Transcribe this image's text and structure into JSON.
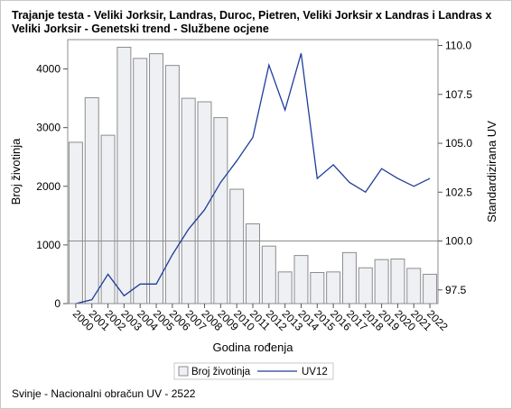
{
  "chart_data": {
    "type": "bar+line",
    "title": "Trajanje testa - Veliki Jorksir, Landras, Duroc, Pietren, Veliki Jorksir x Landras i Landras x Veliki Jorksir - Genetski trend - Službene ocjene",
    "xlabel": "Godina rođenja",
    "ylabel_left": "Broj životinja",
    "ylabel_right": "Standardizirana UV",
    "categories": [
      "2000",
      "2001",
      "2002",
      "2003",
      "2004",
      "2005",
      "2006",
      "2007",
      "2008",
      "2009",
      "2010",
      "2011",
      "2012",
      "2013",
      "2014",
      "2015",
      "2016",
      "2017",
      "2018",
      "2019",
      "2020",
      "2021",
      "2022"
    ],
    "series": [
      {
        "name": "Broj životinja",
        "type": "bar",
        "axis": "left",
        "color": "#eef0f4",
        "stroke": "#8c8c8c",
        "values": [
          2750,
          3510,
          2870,
          4370,
          4180,
          4260,
          4060,
          3500,
          3440,
          3170,
          1950,
          1360,
          980,
          540,
          820,
          530,
          540,
          870,
          610,
          750,
          760,
          600,
          500
        ]
      },
      {
        "name": "UV12",
        "type": "line",
        "axis": "right",
        "color": "#1f3d99",
        "values": [
          96.8,
          97.0,
          98.3,
          97.2,
          97.8,
          97.8,
          99.3,
          100.6,
          101.6,
          103.0,
          104.1,
          105.3,
          109.0,
          106.7,
          109.6,
          103.2,
          103.9,
          103.0,
          102.5,
          103.7,
          103.2,
          102.8,
          103.2
        ]
      }
    ],
    "ylim_left": [
      0,
      4500
    ],
    "yticks_left": [
      "0",
      "1000",
      "2000",
      "3000",
      "4000"
    ],
    "ylim_right": [
      96.8,
      110.3
    ],
    "yticks_right": [
      "97.5",
      "100.0",
      "102.5",
      "105.0",
      "107.5",
      "110.0"
    ],
    "reference_line_right": 100.0,
    "grid": false,
    "legend_position": "bottom"
  },
  "footnote": "Svinje - Nacionalni obračun UV - 2522"
}
